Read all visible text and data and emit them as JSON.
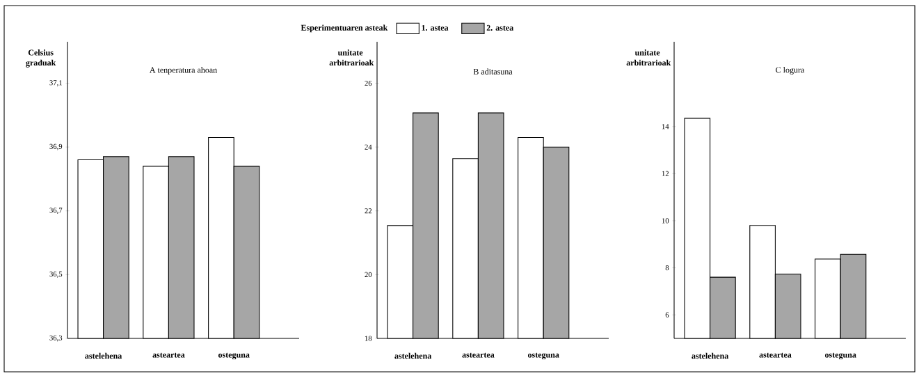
{
  "chart_data": [
    {
      "type": "bar",
      "title": "A  tenperatura ahoan",
      "ylabel": "Celsius graduak",
      "categories": [
        "astelehena",
        "asteartea",
        "osteguna"
      ],
      "series": [
        {
          "color": "#ffffff",
          "values": [
            36.86,
            36.84,
            36.93
          ]
        },
        {
          "color": "#a6a6a6",
          "values": [
            36.87,
            36.87,
            36.84
          ]
        }
      ],
      "ylim": [
        36.3,
        37.23
      ],
      "yticks": [
        {
          "value": 36.3,
          "label": "36,3"
        },
        {
          "value": 36.5,
          "label": "36,5"
        },
        {
          "value": 36.7,
          "label": "36,7"
        },
        {
          "value": 36.9,
          "label": "36,9"
        },
        {
          "value": 37.1,
          "label": "37,1"
        }
      ]
    },
    {
      "type": "bar",
      "title": "B  aditasuna",
      "ylabel": "unitate arbitrarioak",
      "legend_title": "Esperimentuaren asteak",
      "legend": "top",
      "categories": [
        "astelehena",
        "asteartea",
        "osteguna"
      ],
      "series": [
        {
          "name": "1. astea",
          "color": "#ffffff",
          "values": [
            21.54,
            23.64,
            24.3
          ]
        },
        {
          "name": "2. astea",
          "color": "#a6a6a6",
          "values": [
            25.07,
            25.07,
            24.0
          ]
        }
      ],
      "ylim": [
        18,
        27.3
      ],
      "yticks": [
        18,
        20,
        22,
        24,
        26
      ]
    },
    {
      "type": "bar",
      "title": "C  logura",
      "ylabel": "unitate arbitrarioak",
      "categories": [
        "astelehena",
        "asteartea",
        "osteguna"
      ],
      "series": [
        {
          "color": "#ffffff",
          "values": [
            14.35,
            9.8,
            8.37
          ]
        },
        {
          "color": "#a6a6a6",
          "values": [
            7.6,
            7.73,
            8.57
          ]
        }
      ],
      "ylim": [
        5,
        17.6
      ],
      "yticks": [
        6,
        8,
        10,
        12,
        14
      ]
    }
  ]
}
